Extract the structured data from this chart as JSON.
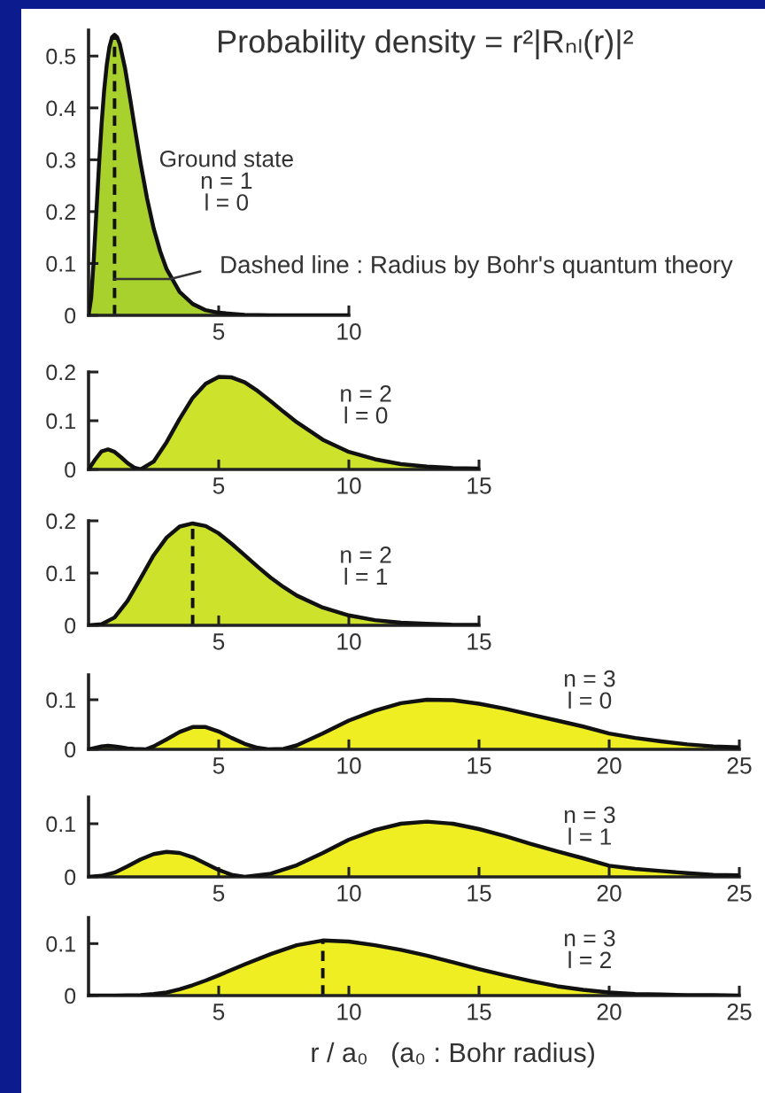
{
  "chart_data": [
    {
      "type": "area",
      "title": "Probability density = r²|Rₙₗ(r)|²",
      "xlim": [
        0,
        10
      ],
      "ylim": [
        0,
        0.55
      ],
      "xticks": [
        5,
        10
      ],
      "yticks": [
        0,
        0.1,
        0.2,
        0.3,
        0.4,
        0.5
      ],
      "color": "#a8d12e",
      "x": [
        0,
        0.1,
        0.2,
        0.3,
        0.4,
        0.5,
        0.6,
        0.7,
        0.8,
        0.9,
        1,
        1.1,
        1.2,
        1.4,
        1.6,
        1.8,
        2,
        2.25,
        2.5,
        2.75,
        3,
        3.5,
        4,
        4.5,
        5,
        6,
        7,
        8,
        10
      ],
      "values": [
        0,
        0.033,
        0.107,
        0.198,
        0.288,
        0.368,
        0.434,
        0.483,
        0.517,
        0.536,
        0.541,
        0.536,
        0.523,
        0.477,
        0.417,
        0.354,
        0.293,
        0.225,
        0.168,
        0.124,
        0.089,
        0.045,
        0.022,
        0.01,
        0.005,
        0.001,
        0,
        0,
        0
      ],
      "ref_lines": [
        {
          "axis": "x",
          "value": 1,
          "line_style": "dashed"
        }
      ],
      "annotations": [
        "Ground state\nn = 1\nl = 0",
        {
          "text": "Dashed line : Radius by Bohr's quantum theory",
          "x": 1,
          "y": 0.07
        }
      ]
    },
    {
      "type": "area",
      "xlim": [
        0,
        15
      ],
      "ylim": [
        0,
        0.2
      ],
      "xticks": [
        5,
        10,
        15
      ],
      "yticks": [
        0,
        0.1,
        0.2
      ],
      "color": "#cde22b",
      "x": [
        0,
        0.25,
        0.5,
        0.75,
        1,
        1.25,
        1.5,
        1.75,
        2,
        2.5,
        3,
        3.5,
        4,
        4.5,
        5,
        5.5,
        6,
        6.5,
        7,
        7.5,
        8,
        9,
        10,
        11,
        12,
        13,
        14,
        15
      ],
      "values": [
        0,
        0.02,
        0.037,
        0.041,
        0.036,
        0.025,
        0.013,
        0.004,
        0,
        0.016,
        0.056,
        0.104,
        0.147,
        0.176,
        0.19,
        0.189,
        0.179,
        0.161,
        0.14,
        0.118,
        0.097,
        0.061,
        0.036,
        0.021,
        0.011,
        0.006,
        0.003,
        0.002
      ],
      "annotations": [
        "n = 2\nl = 0"
      ]
    },
    {
      "type": "area",
      "xlim": [
        0,
        15
      ],
      "ylim": [
        0,
        0.2
      ],
      "xticks": [
        5,
        10,
        15
      ],
      "yticks": [
        0,
        0.1,
        0.2
      ],
      "color": "#cde22b",
      "x": [
        0,
        0.5,
        1,
        1.5,
        2,
        2.5,
        3,
        3.5,
        4,
        4.5,
        5,
        5.5,
        6,
        6.5,
        7,
        7.5,
        8,
        9,
        10,
        11,
        12,
        13,
        14,
        15
      ],
      "values": [
        0,
        0.002,
        0.015,
        0.047,
        0.09,
        0.134,
        0.168,
        0.189,
        0.195,
        0.19,
        0.176,
        0.156,
        0.134,
        0.112,
        0.091,
        0.073,
        0.057,
        0.034,
        0.019,
        0.01,
        0.005,
        0.003,
        0.001,
        0.001
      ],
      "ref_lines": [
        {
          "axis": "x",
          "value": 4,
          "line_style": "dashed"
        }
      ],
      "annotations": [
        "n = 2\nl = 1"
      ]
    },
    {
      "type": "area",
      "xlim": [
        0,
        25
      ],
      "ylim": [
        0,
        0.15
      ],
      "xticks": [
        5,
        10,
        15,
        20,
        25
      ],
      "yticks": [
        0,
        0.1
      ],
      "color": "#eeee22",
      "x": [
        0,
        0.25,
        0.5,
        0.75,
        1,
        1.25,
        1.5,
        1.75,
        2.2,
        2.5,
        3,
        3.5,
        4,
        4.5,
        5,
        5.5,
        6,
        6.5,
        6.9,
        7.5,
        8,
        9,
        10,
        11,
        12,
        13,
        14,
        15,
        16,
        17,
        18,
        19,
        20,
        21,
        22,
        23,
        24,
        25
      ],
      "values": [
        0,
        0.003,
        0.006,
        0.007,
        0.006,
        0.004,
        0.002,
        0.001,
        0,
        0.006,
        0.02,
        0.035,
        0.045,
        0.045,
        0.036,
        0.023,
        0.011,
        0.003,
        0,
        0.001,
        0.008,
        0.032,
        0.058,
        0.078,
        0.093,
        0.1,
        0.099,
        0.092,
        0.082,
        0.07,
        0.058,
        0.046,
        0.032,
        0.023,
        0.016,
        0.01,
        0.006,
        0.004
      ],
      "annotations": [
        "n = 3\nl = 0"
      ]
    },
    {
      "type": "area",
      "xlim": [
        0,
        25
      ],
      "ylim": [
        0,
        0.15
      ],
      "xticks": [
        5,
        10,
        15,
        20,
        25
      ],
      "yticks": [
        0,
        0.1
      ],
      "color": "#eeee22",
      "x": [
        0,
        0.5,
        1,
        1.5,
        2,
        2.5,
        3,
        3.5,
        4,
        4.5,
        5,
        5.5,
        6,
        7,
        8,
        9,
        10,
        11,
        12,
        13,
        14,
        15,
        16,
        17,
        18,
        19,
        20,
        21,
        22,
        23,
        24,
        25
      ],
      "values": [
        0,
        0.002,
        0.008,
        0.02,
        0.033,
        0.043,
        0.047,
        0.045,
        0.037,
        0.025,
        0.013,
        0.004,
        0,
        0.006,
        0.022,
        0.045,
        0.07,
        0.088,
        0.1,
        0.104,
        0.1,
        0.09,
        0.077,
        0.062,
        0.048,
        0.035,
        0.021,
        0.015,
        0.011,
        0.007,
        0.004,
        0.003
      ],
      "annotations": [
        "n = 3\nl = 1"
      ]
    },
    {
      "type": "area",
      "xlabel": "r / a₀   (a₀ : Bohr radius)",
      "xlim": [
        0,
        25
      ],
      "ylim": [
        0,
        0.15
      ],
      "xticks": [
        5,
        10,
        15,
        20,
        25
      ],
      "yticks": [
        0,
        0.1
      ],
      "color": "#eeee22",
      "x": [
        0,
        1,
        2,
        2.5,
        3,
        3.5,
        4,
        4.5,
        5,
        6,
        7,
        8,
        9,
        10,
        11,
        12,
        13,
        14,
        15,
        16,
        17,
        18,
        19,
        20,
        21,
        22,
        23,
        24,
        25
      ],
      "values": [
        0,
        0,
        0.001,
        0.003,
        0.006,
        0.012,
        0.02,
        0.029,
        0.039,
        0.06,
        0.08,
        0.097,
        0.106,
        0.104,
        0.097,
        0.088,
        0.077,
        0.064,
        0.051,
        0.039,
        0.028,
        0.018,
        0.011,
        0.006,
        0.003,
        0.002,
        0.001,
        0.001,
        0
      ],
      "ref_lines": [
        {
          "axis": "x",
          "value": 9,
          "line_style": "dashed"
        }
      ],
      "annotations": [
        "n = 3\nl = 2"
      ]
    }
  ]
}
